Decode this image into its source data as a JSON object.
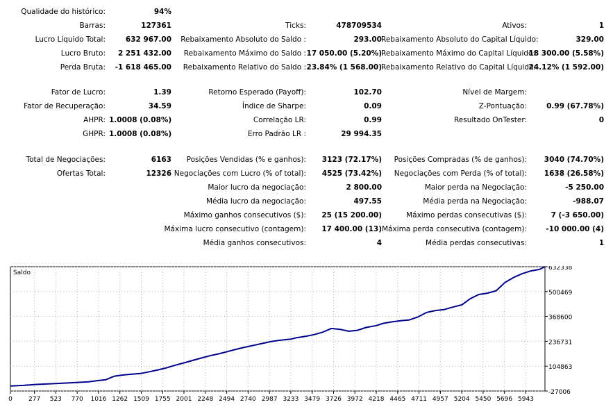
{
  "stats": {
    "row1": {
      "l1": "Qualidade do histórico:",
      "v1": "94%"
    },
    "row2": {
      "l1": "Barras:",
      "v1": "127361",
      "l2": "Ticks:",
      "v2": "478709534",
      "l3": "Ativos:",
      "v3": "1"
    },
    "row3": {
      "l1": "Lucro Líquido Total:",
      "v1": "632 967.00",
      "l2": "Rebaixamento Absoluto do Saldo :",
      "v2": "293.00",
      "l3": "Rebaixamento Absoluto do Capital Líquido:",
      "v3": "329.00"
    },
    "row4": {
      "l1": "Lucro Bruto:",
      "v1": "2 251 432.00",
      "l2": "Rebaixamento Máximo do Saldo :",
      "v2": "17 050.00 (5.20%)",
      "l3": "Rebaixamento Máximo do Capital Líquido:",
      "v3": "18 300.00 (5.58%)"
    },
    "row5": {
      "l1": "Perda Bruta:",
      "v1": "-1 618 465.00",
      "l2": "Rebaixamento Relativo do Saldo :",
      "v2": "23.84% (1 568.00)",
      "l3": "Rebaixamento Relativo do Capital Líquido:",
      "v3": "24.12% (1 592.00)"
    },
    "row6": {
      "l1": "Fator de Lucro:",
      "v1": "1.39",
      "l2": "Retorno Esperado (Payoff):",
      "v2": "102.70",
      "l3": "Nível de Margem:",
      "v3": ""
    },
    "row7": {
      "l1": "Fator de Recuperação:",
      "v1": "34.59",
      "l2": "Índice de Sharpe:",
      "v2": "0.09",
      "l3": "Z-Pontuação:",
      "v3": "0.99 (67.78%)"
    },
    "row8": {
      "l1": "AHPR:",
      "v1": "1.0008 (0.08%)",
      "l2": "Correlação LR:",
      "v2": "0.99",
      "l3": "Resultado OnTester:",
      "v3": "0"
    },
    "row9": {
      "l1": "GHPR:",
      "v1": "1.0008 (0.08%)",
      "l2": "Erro Padrão LR :",
      "v2": "29 994.35"
    },
    "row10": {
      "l1": "Total de Negociações:",
      "v1": "6163",
      "l2": "Posições Vendidas (% e ganhos):",
      "v2": "3123 (72.17%)",
      "l3": "Posições Compradas (% de ganhos):",
      "v3": "3040 (74.70%)"
    },
    "row11": {
      "l1": "Ofertas Total:",
      "v1": "12326",
      "l2": "Negociações com Lucro (% of total):",
      "v2": "4525 (73.42%)",
      "l3": "Negociações com Perda (% of total):",
      "v3": "1638 (26.58%)"
    },
    "row12": {
      "l2": "Maior lucro da negociação:",
      "v2": "2 800.00",
      "l3": "Maior perda na Negociação:",
      "v3": "-5 250.00"
    },
    "row13": {
      "l2": "Média lucro da negociação:",
      "v2": "497.55",
      "l3": "Média perda na Negociação:",
      "v3": "-988.07"
    },
    "row14": {
      "l2": "Máximo ganhos consecutivos ($):",
      "v2": "25 (15 200.00)",
      "l3": "Máximo perdas consecutivas ($):",
      "v3": "7 (-3 650.00)"
    },
    "row15": {
      "l2": "Máxima lucro consecutivo (contagem):",
      "v2": "17 400.00 (13)",
      "l3": "Máxima perda consecutiva (contagem):",
      "v3": "-10 000.00 (4)"
    },
    "row16": {
      "l2": "Média ganhos consecutivos:",
      "v2": "4",
      "l3": "Média perdas consecutivas:",
      "v3": "1"
    }
  },
  "chart_data": {
    "type": "line",
    "title": "Saldo",
    "xlabel": "",
    "ylabel": "",
    "line_color": "#00008b",
    "grid": true,
    "x_ticks": [
      0,
      277,
      523,
      770,
      1016,
      1262,
      1509,
      1755,
      2001,
      2248,
      2494,
      2740,
      2987,
      3233,
      3479,
      3726,
      3972,
      4218,
      4465,
      4711,
      4957,
      5204,
      5450,
      5696,
      5943
    ],
    "y_ticks": [
      -27006,
      104863,
      236731,
      368600,
      500469,
      632338
    ],
    "xlim": [
      0,
      6163
    ],
    "ylim": [
      -27006,
      632338
    ],
    "series": [
      {
        "x": [
          0,
          150,
          300,
          500,
          700,
          900,
          1000,
          1100,
          1200,
          1300,
          1400,
          1500,
          1600,
          1700,
          1800,
          1900,
          2000,
          2100,
          2200,
          2300,
          2400,
          2500,
          2600,
          2700,
          2800,
          2900,
          3000,
          3100,
          3233,
          3300,
          3400,
          3500,
          3600,
          3700,
          3800,
          3900,
          4000,
          4100,
          4218,
          4300,
          4400,
          4500,
          4600,
          4700,
          4800,
          4900,
          5000,
          5100,
          5204,
          5300,
          5400,
          5500,
          5600,
          5700,
          5800,
          5900,
          6000,
          6100,
          6163
        ],
        "y": [
          0,
          3000,
          8000,
          12000,
          17000,
          22000,
          28000,
          33000,
          52000,
          58000,
          62000,
          66000,
          75000,
          85000,
          96000,
          110000,
          122000,
          135000,
          148000,
          160000,
          170000,
          182000,
          194000,
          205000,
          215000,
          225000,
          235000,
          242000,
          248000,
          256000,
          263000,
          272000,
          285000,
          305000,
          300000,
          290000,
          295000,
          310000,
          320000,
          332000,
          340000,
          346000,
          350000,
          366000,
          390000,
          400000,
          405000,
          418000,
          430000,
          462000,
          485000,
          492000,
          505000,
          548000,
          575000,
          595000,
          610000,
          618000,
          632338
        ]
      }
    ]
  }
}
